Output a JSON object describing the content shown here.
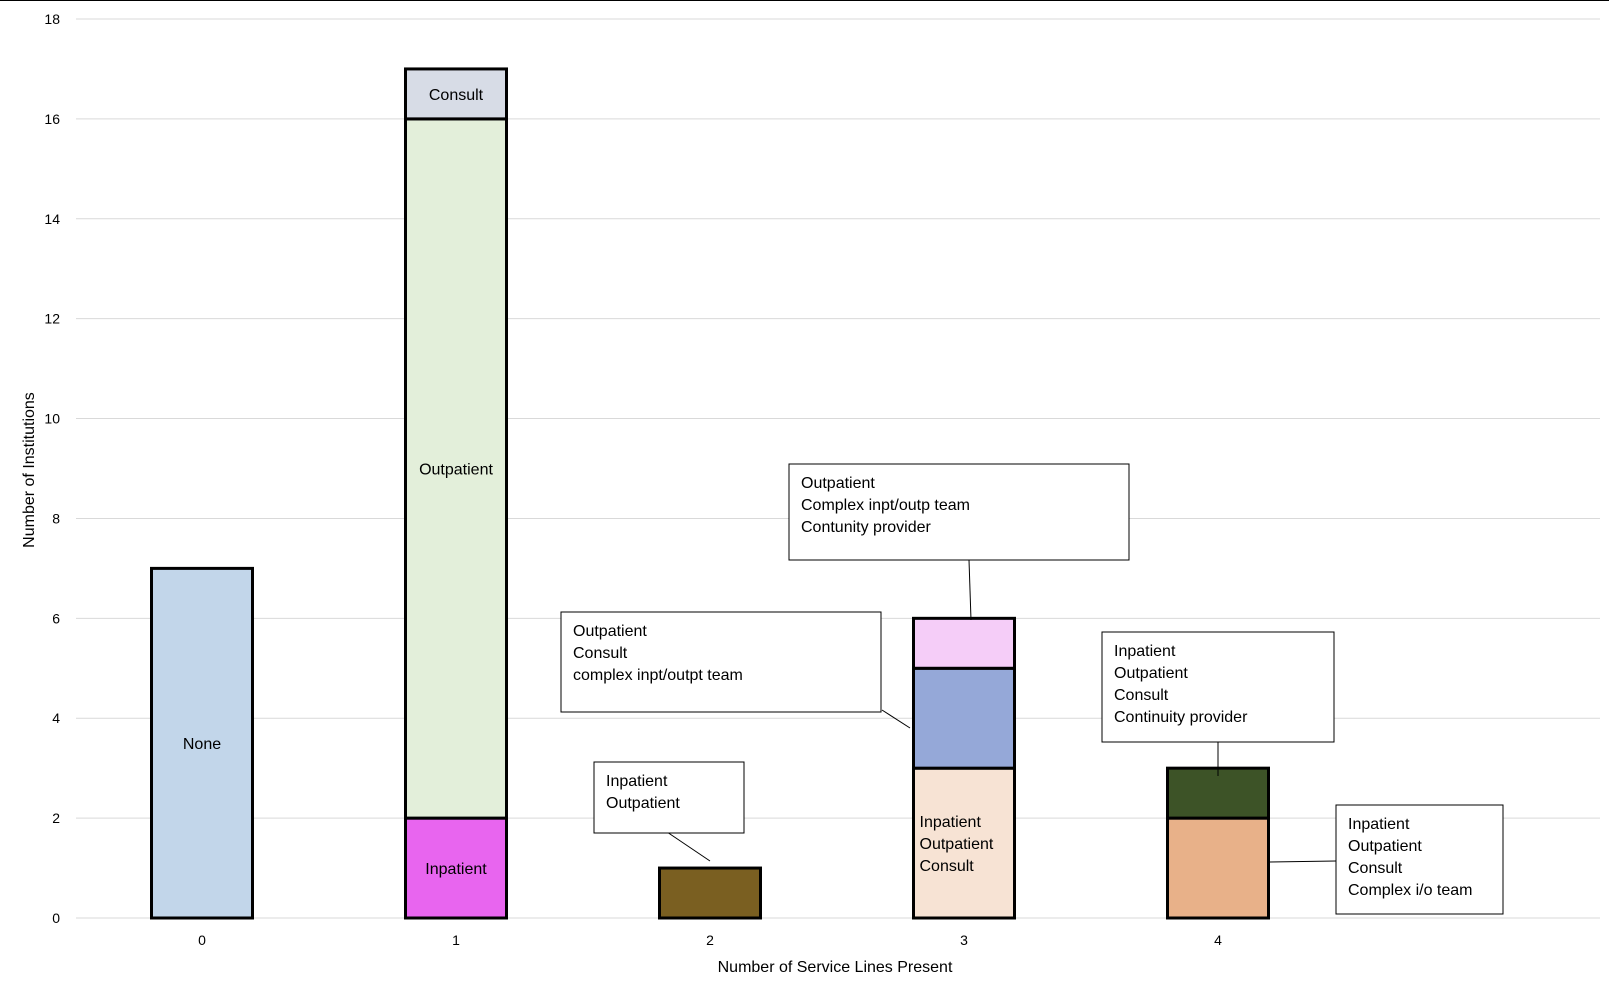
{
  "chart_data": {
    "type": "bar",
    "stacked": true,
    "title": "",
    "xlabel": "Number of Service Lines Present",
    "ylabel": "Number of Institutions",
    "ylim": [
      0,
      18
    ],
    "yticks": [
      0,
      2,
      4,
      6,
      8,
      10,
      12,
      14,
      16,
      18
    ],
    "categories": [
      "0",
      "1",
      "2",
      "3",
      "4"
    ],
    "grid": true,
    "bars": [
      {
        "category": "0",
        "segments": [
          {
            "value": 7,
            "label": "None",
            "color": "#c2d6ea"
          }
        ]
      },
      {
        "category": "1",
        "segments": [
          {
            "value": 2,
            "label": "Inpatient",
            "color": "#e865ef"
          },
          {
            "value": 14,
            "label": "Outpatient",
            "color": "#e3efda"
          },
          {
            "value": 1,
            "label": "Consult",
            "color": "#d7dce6"
          }
        ]
      },
      {
        "category": "2",
        "segments": [
          {
            "value": 1,
            "label": "",
            "color": "#7a5f21",
            "callout": [
              "Inpatient",
              "Outpatient"
            ]
          }
        ]
      },
      {
        "category": "3",
        "segments": [
          {
            "value": 3,
            "label": "Inpatient\nOutpatient\nConsult",
            "color": "#f7e3d4"
          },
          {
            "value": 2,
            "label": "",
            "color": "#95a8d8",
            "callout": [
              "Outpatient",
              "Consult",
              "complex inpt/outpt team"
            ]
          },
          {
            "value": 1,
            "label": "",
            "color": "#f5cdf8",
            "callout": [
              "Outpatient",
              "Complex inpt/outp team",
              "Contunity provider"
            ]
          }
        ]
      },
      {
        "category": "4",
        "segments": [
          {
            "value": 2,
            "label": "",
            "color": "#e8b189",
            "callout": [
              "Inpatient",
              "Outpatient",
              "Consult",
              "Complex i/o team"
            ]
          },
          {
            "value": 1,
            "label": "",
            "color": "#3d5327",
            "callout": [
              "Inpatient",
              "Outpatient",
              "Consult",
              "Continuity provider"
            ]
          }
        ]
      }
    ]
  }
}
